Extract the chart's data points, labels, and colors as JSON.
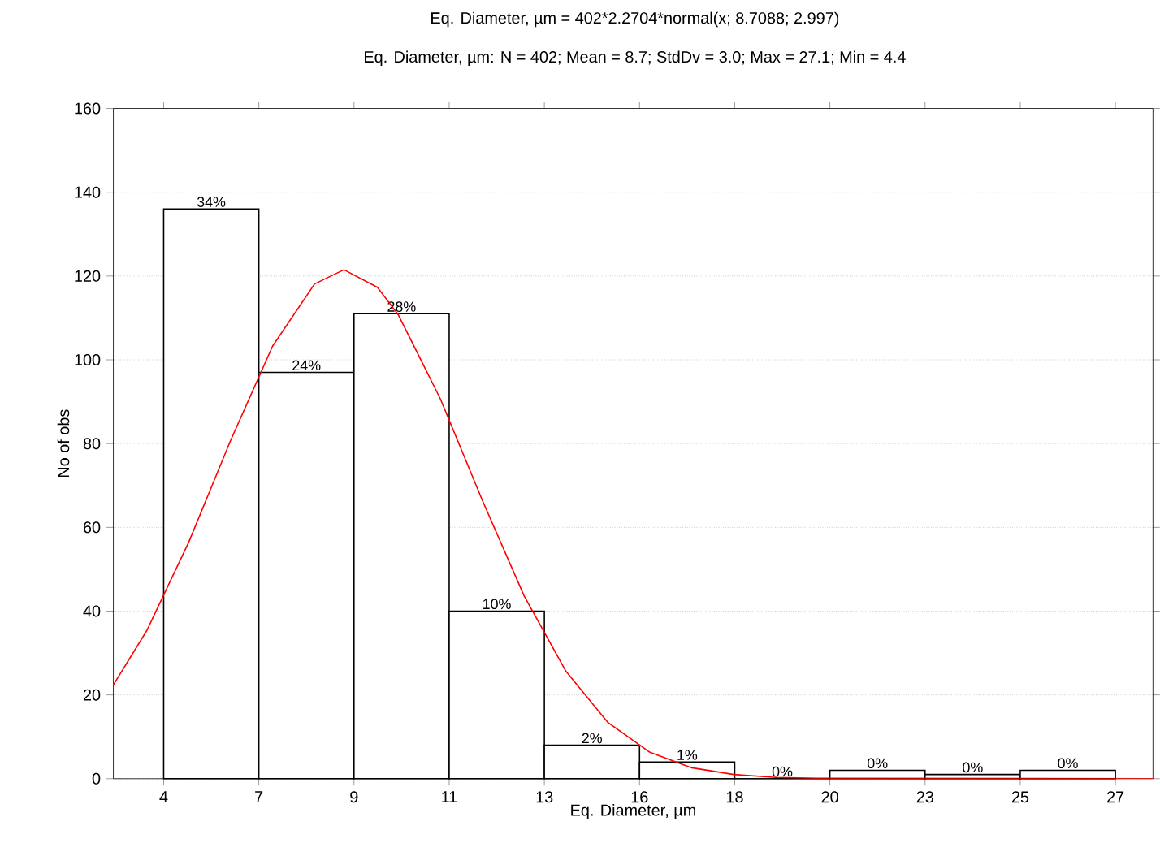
{
  "chart_data": {
    "type": "histogram",
    "title": "Eq. Diameter, µm = 402*2.2704*normal(x; 8.7088; 2.997)",
    "subtitle": "Eq. Diameter, µm:   N = 402; Mean = 8.7; StdDv = 3.0; Max = 27.1; Min = 4.4",
    "xlabel": "Eq. Diameter, µm",
    "ylabel": "No of obs",
    "bins": [
      4.4,
      6.6704,
      8.9408,
      11.2112,
      13.4816,
      15.752,
      18.0224,
      20.2928,
      22.5632,
      24.8336,
      27.104
    ],
    "values": [
      136,
      97,
      111,
      40,
      8,
      4,
      0,
      2,
      1,
      2
    ],
    "annotations": [
      {
        "text": "34%",
        "x": 5.5352,
        "y": 136
      },
      {
        "text": "24%",
        "x": 7.8056,
        "y": 97
      },
      {
        "text": "28%",
        "x": 10.076,
        "y": 111
      },
      {
        "text": "10%",
        "x": 12.3464,
        "y": 40
      },
      {
        "text": "2%",
        "x": 14.6168,
        "y": 8
      },
      {
        "text": "1%",
        "x": 16.8872,
        "y": 4
      },
      {
        "text": "0%",
        "x": 19.1576,
        "y": 0
      },
      {
        "text": "0%",
        "x": 21.428,
        "y": 2
      },
      {
        "text": "0%",
        "x": 23.6984,
        "y": 1
      },
      {
        "text": "0%",
        "x": 25.9688,
        "y": 2
      }
    ],
    "color": "#000000",
    "series": [
      {
        "type": "line",
        "color": "#ff0000",
        "x": [
          3.2,
          4,
          5,
          6,
          7,
          8,
          8.7,
          9.5,
          10,
          11,
          12,
          13,
          14,
          15,
          16,
          17,
          18,
          19,
          20,
          28
        ],
        "values": [
          22.4,
          35.4,
          56.5,
          80.8,
          103.3,
          118.1,
          121.5,
          117.3,
          110.7,
          90.7,
          66.5,
          43.6,
          25.6,
          13.4,
          6.3,
          2.6,
          1.0,
          0.3,
          0.1,
          0
        ]
      }
    ],
    "xlim": [
      3.2,
      28.0
    ],
    "ylim": [
      0,
      160
    ],
    "xticks": [
      {
        "value": 4.4,
        "label": "4"
      },
      {
        "value": 6.6704,
        "label": "7"
      },
      {
        "value": 8.9408,
        "label": "9"
      },
      {
        "value": 11.2112,
        "label": "11"
      },
      {
        "value": 13.4816,
        "label": "13"
      },
      {
        "value": 15.752,
        "label": "16"
      },
      {
        "value": 18.0224,
        "label": "18"
      },
      {
        "value": 20.2928,
        "label": "20"
      },
      {
        "value": 22.5632,
        "label": "23"
      },
      {
        "value": 24.8336,
        "label": "25"
      },
      {
        "value": 27.104,
        "label": "27"
      }
    ],
    "yticks": [
      0,
      20,
      40,
      60,
      80,
      100,
      120,
      140,
      160
    ],
    "grid": "y"
  }
}
